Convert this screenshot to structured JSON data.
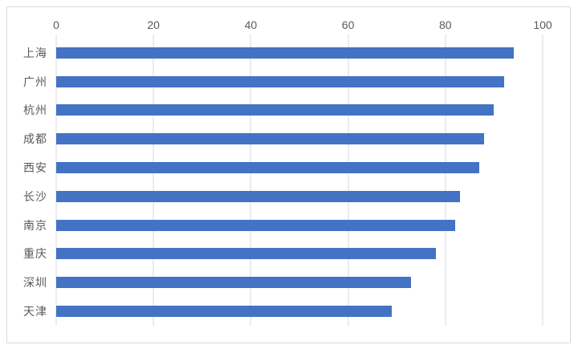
{
  "chart_data": {
    "type": "bar",
    "orientation": "horizontal",
    "title": "",
    "xlabel": "",
    "ylabel": "",
    "categories": [
      "上海",
      "广州",
      "杭州",
      "成都",
      "西安",
      "长沙",
      "南京",
      "重庆",
      "深圳",
      "天津"
    ],
    "values": [
      94,
      92,
      90,
      88,
      87,
      83,
      82,
      78,
      73,
      69
    ],
    "xlim": [
      0,
      100
    ],
    "x_ticks": [
      0,
      20,
      40,
      60,
      80,
      100
    ],
    "grid": true,
    "legend": false,
    "axis_position": "top",
    "colors": {
      "bar": "#4472C4",
      "gridline": "#D9D9D9",
      "tick_label": "#595959",
      "category_label": "#595959",
      "chart_border": "#D9D9D9",
      "background": "#FFFFFF"
    }
  }
}
